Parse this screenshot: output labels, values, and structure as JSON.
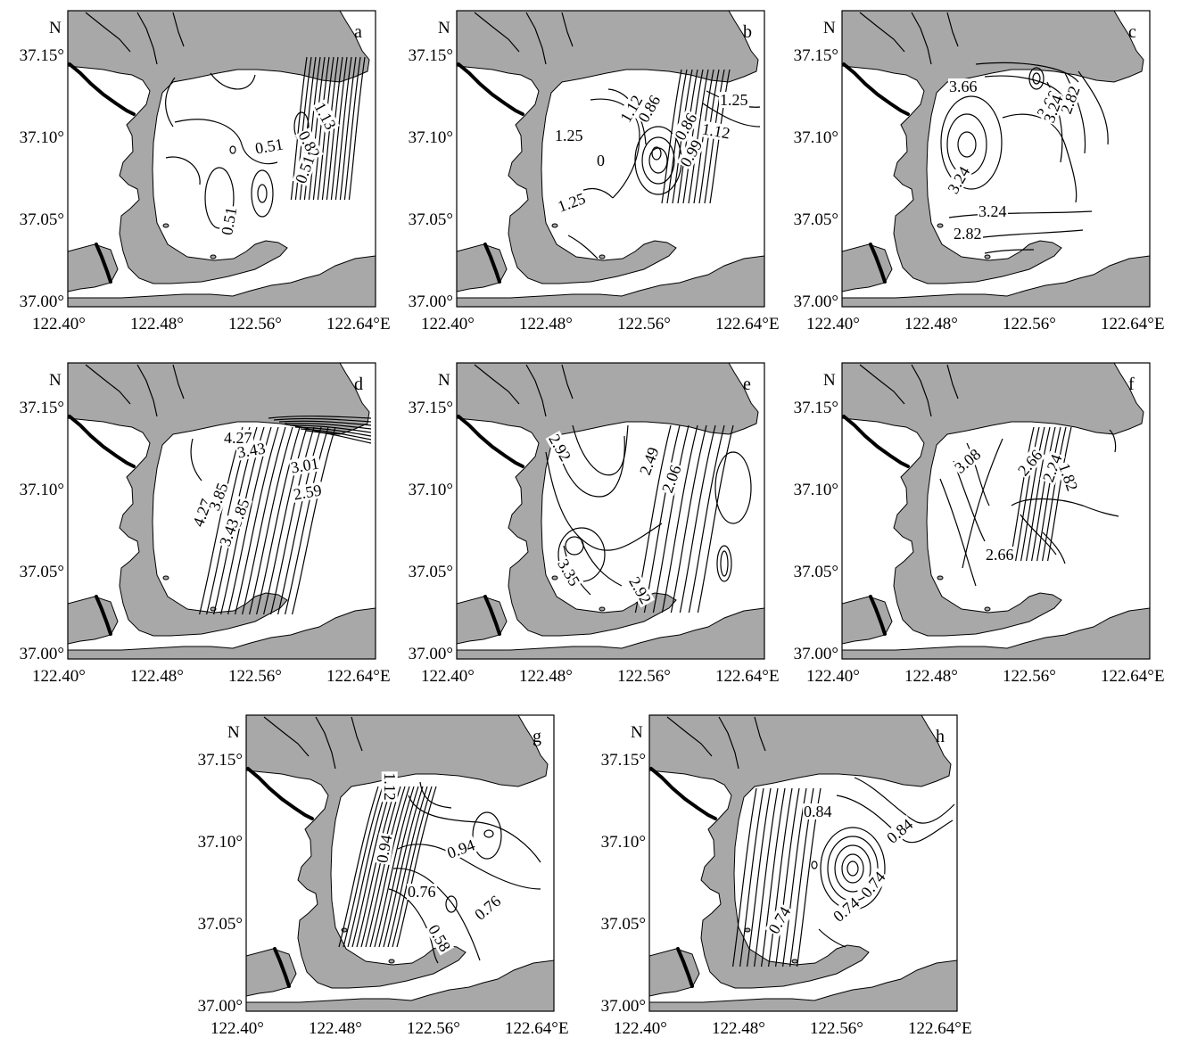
{
  "figure": {
    "axes": {
      "north_label": "N",
      "east_suffix": "E",
      "lat_ticks": [
        "37.15°",
        "37.10°",
        "37.05°",
        "37.00°"
      ],
      "lon_ticks": [
        "122.40°",
        "122.48°",
        "122.56°",
        "122.64°"
      ]
    },
    "colors": {
      "land": "#a8a8a8",
      "sea": "#ffffff",
      "line": "#000000"
    },
    "panels": [
      {
        "id": "a",
        "label": "a",
        "contour_labels": [
          "1.13",
          "0.82",
          "0.51",
          "0.51",
          "0.51"
        ]
      },
      {
        "id": "b",
        "label": "b",
        "contour_labels": [
          "1.25",
          "1.12",
          "0.99",
          "0.86",
          "0.86",
          "1.12",
          "1.25",
          "1.25",
          "0"
        ]
      },
      {
        "id": "c",
        "label": "c",
        "contour_labels": [
          "3.66",
          "3.66",
          "3.24",
          "2.82",
          "3.24",
          "3.24",
          "2.82"
        ]
      },
      {
        "id": "d",
        "label": "d",
        "contour_labels": [
          "4.27",
          "4.27",
          "3.85",
          "3.43",
          "3.01",
          "2.59",
          "3.85",
          "3.43"
        ]
      },
      {
        "id": "e",
        "label": "e",
        "contour_labels": [
          "2.92",
          "2.49",
          "2.06",
          "2.92",
          "3.35"
        ]
      },
      {
        "id": "f",
        "label": "f",
        "contour_labels": [
          "3.08",
          "2.66",
          "2.24",
          "1.82",
          "2.66"
        ]
      },
      {
        "id": "g",
        "label": "g",
        "contour_labels": [
          "1.12",
          "0.94",
          "0.94",
          "0.76",
          "0.76",
          "0.58"
        ]
      },
      {
        "id": "h",
        "label": "h",
        "contour_labels": [
          "0.84",
          "0.84",
          "0.74",
          "0.74",
          "0.74"
        ]
      }
    ]
  }
}
